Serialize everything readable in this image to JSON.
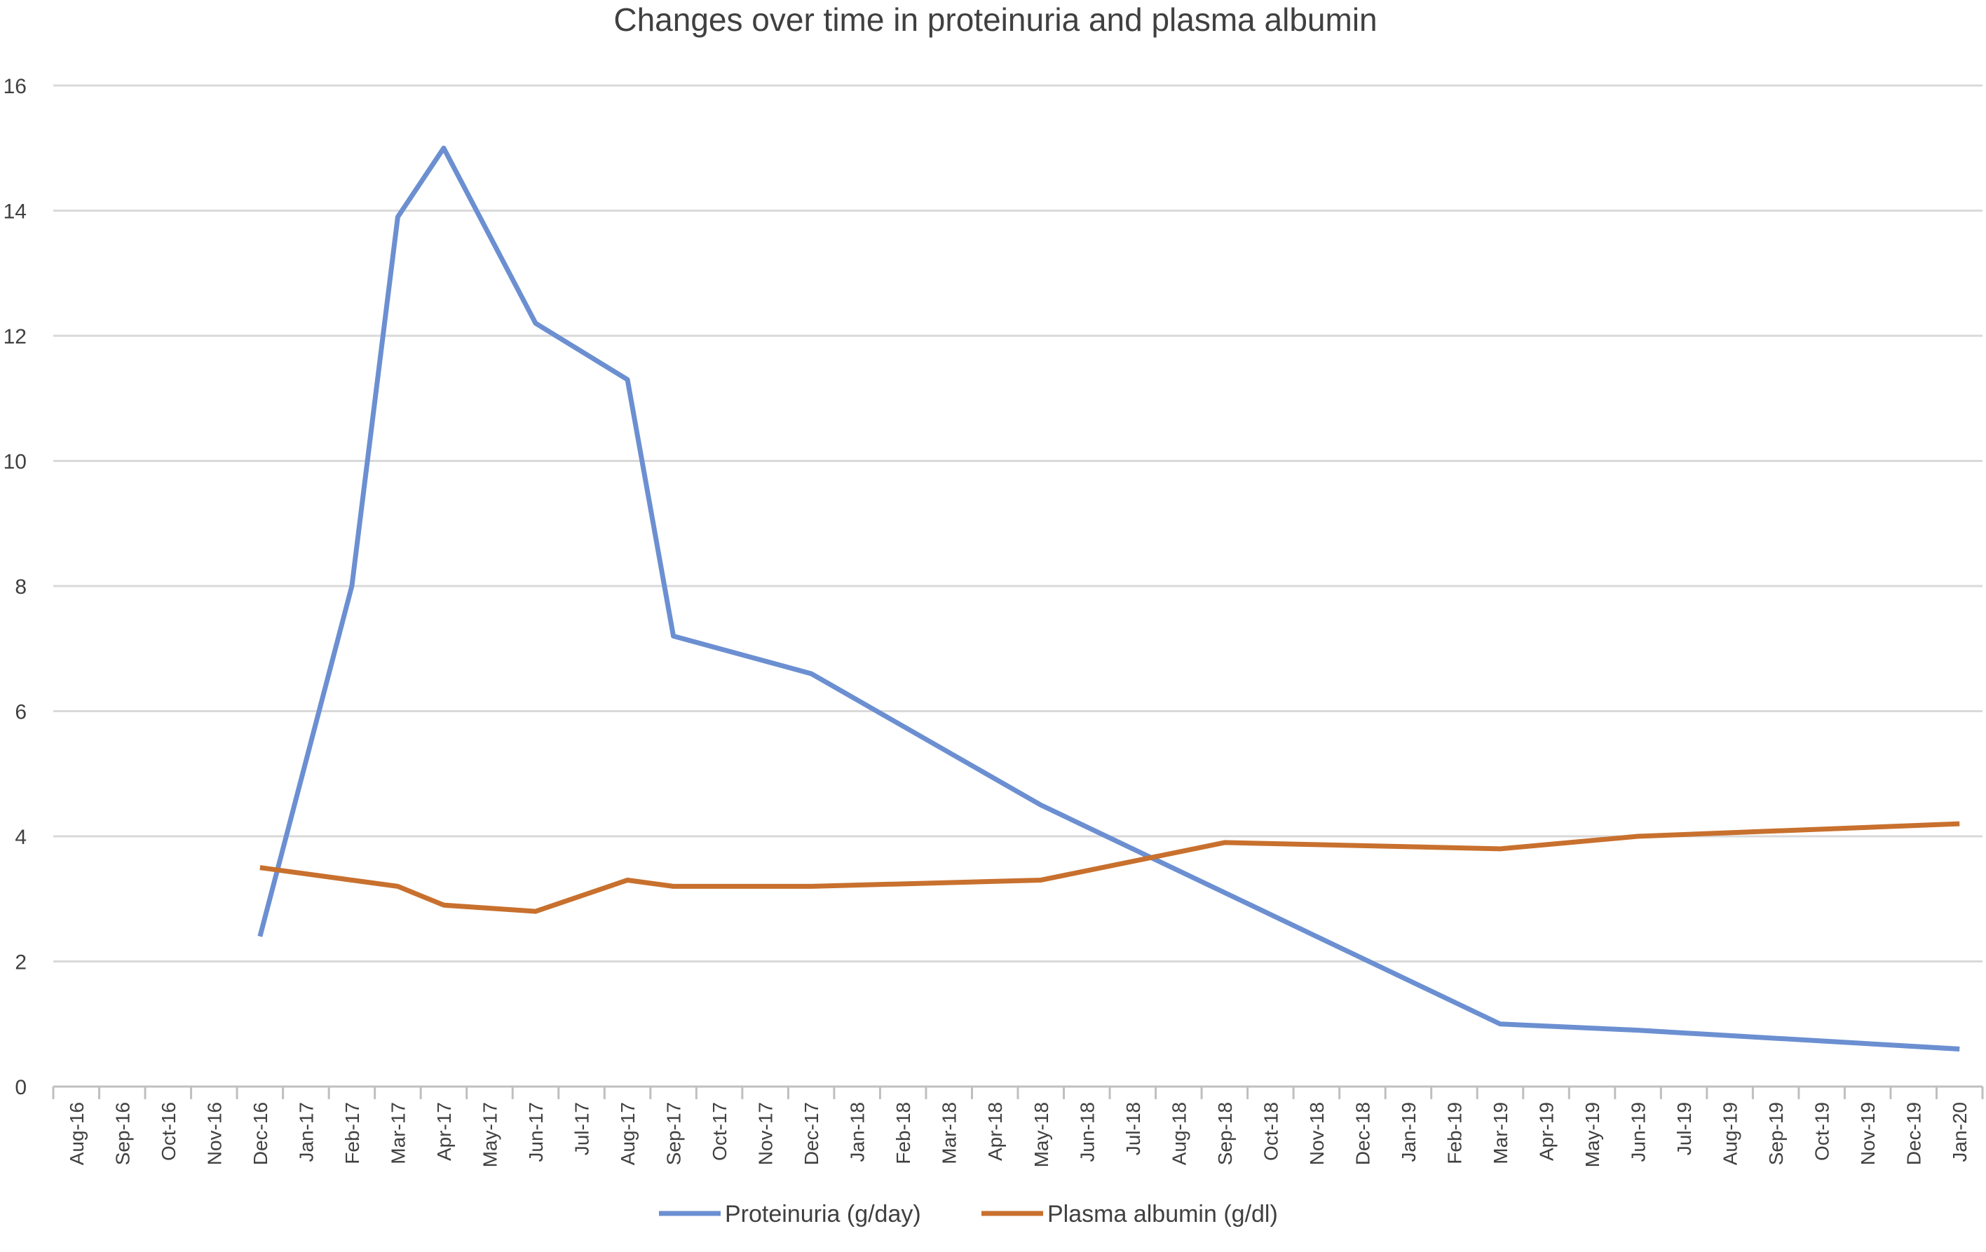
{
  "chart_data": {
    "type": "line",
    "title": "Changes over time in proteinuria and plasma albumin",
    "xlabel": "",
    "ylabel": "",
    "ylim": [
      0,
      16
    ],
    "yticks": [
      0,
      2,
      4,
      6,
      8,
      10,
      12,
      14,
      16
    ],
    "grid": true,
    "legend_position": "bottom",
    "categories": [
      "Aug-16",
      "Sep-16",
      "Oct-16",
      "Nov-16",
      "Dec-16",
      "Jan-17",
      "Feb-17",
      "Mar-17",
      "Apr-17",
      "May-17",
      "Jun-17",
      "Jul-17",
      "Aug-17",
      "Sep-17",
      "Oct-17",
      "Nov-17",
      "Dec-17",
      "Jan-18",
      "Feb-18",
      "Mar-18",
      "Apr-18",
      "May-18",
      "Jun-18",
      "Jul-18",
      "Aug-18",
      "Sep-18",
      "Oct-18",
      "Nov-18",
      "Dec-18",
      "Jan-19",
      "Feb-19",
      "Mar-19",
      "Apr-19",
      "May-19",
      "Jun-19",
      "Jul-19",
      "Aug-19",
      "Sep-19",
      "Oct-19",
      "Nov-19",
      "Dec-19",
      "Jan-20"
    ],
    "series": [
      {
        "name": "Proteinuria (g/day)",
        "color": "#6b8fd1",
        "points": [
          {
            "x": "Dec-16",
            "y": 2.4
          },
          {
            "x": "Feb-17",
            "y": 8.0
          },
          {
            "x": "Mar-17",
            "y": 13.9
          },
          {
            "x": "Apr-17",
            "y": 15.0
          },
          {
            "x": "Jun-17",
            "y": 12.2
          },
          {
            "x": "Aug-17",
            "y": 11.3
          },
          {
            "x": "Sep-17",
            "y": 7.2
          },
          {
            "x": "Dec-17",
            "y": 6.6
          },
          {
            "x": "May-18",
            "y": 4.5
          },
          {
            "x": "Mar-19",
            "y": 1.0
          },
          {
            "x": "Jun-19",
            "y": 0.9
          },
          {
            "x": "Jan-20",
            "y": 0.6
          }
        ]
      },
      {
        "name": "Plasma albumin (g/dl)",
        "color": "#c8702e",
        "points": [
          {
            "x": "Dec-16",
            "y": 3.5
          },
          {
            "x": "Feb-17",
            "y": 3.3
          },
          {
            "x": "Mar-17",
            "y": 3.2
          },
          {
            "x": "Apr-17",
            "y": 2.9
          },
          {
            "x": "Jun-17",
            "y": 2.8
          },
          {
            "x": "Aug-17",
            "y": 3.3
          },
          {
            "x": "Sep-17",
            "y": 3.2
          },
          {
            "x": "Dec-17",
            "y": 3.2
          },
          {
            "x": "May-18",
            "y": 3.3
          },
          {
            "x": "Sep-18",
            "y": 3.9
          },
          {
            "x": "Mar-19",
            "y": 3.8
          },
          {
            "x": "Jun-19",
            "y": 4.0
          },
          {
            "x": "Jan-20",
            "y": 4.2
          }
        ]
      }
    ]
  }
}
